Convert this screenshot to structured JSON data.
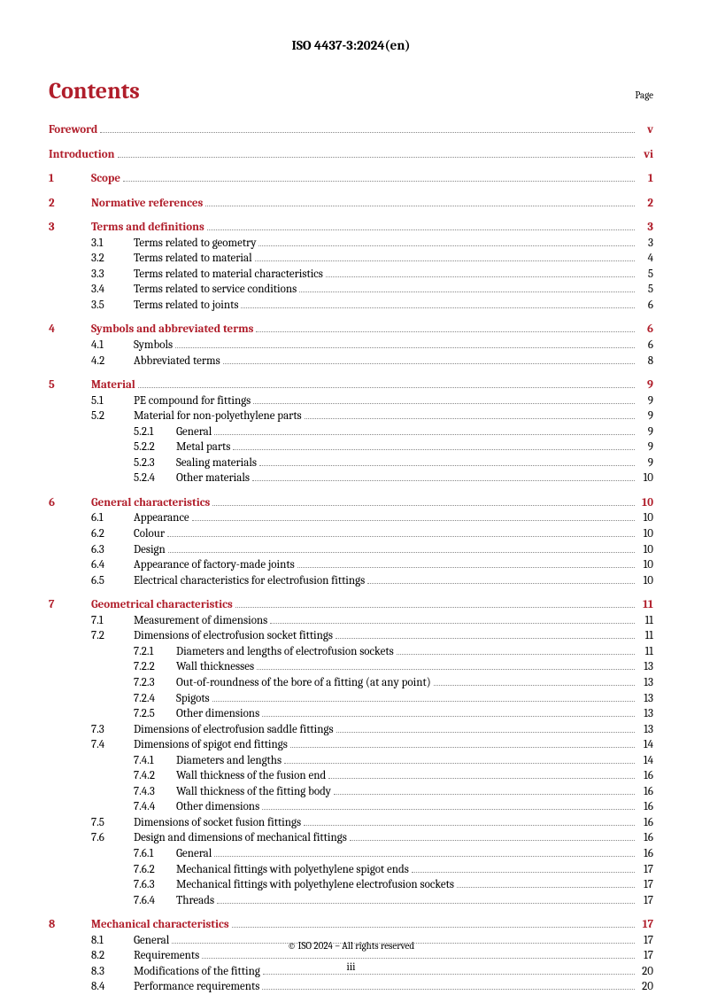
{
  "doc_header": "ISO 4437-3:2024(en)",
  "contents_title": "Contents",
  "page_label": "Page",
  "footer": "© ISO 2024 – All rights reserved",
  "page_number": "iii",
  "toc": [
    {
      "level": 0,
      "bold": true,
      "red": true,
      "num": "",
      "label": "Foreword",
      "page": "v",
      "blockStart": true
    },
    {
      "level": 0,
      "bold": true,
      "red": true,
      "num": "",
      "label": "Introduction",
      "page": "vi",
      "blockStart": true
    },
    {
      "level": 1,
      "bold": true,
      "red": true,
      "num": "1",
      "label": "Scope",
      "page": "1",
      "blockStart": true
    },
    {
      "level": 1,
      "bold": true,
      "red": true,
      "num": "2",
      "label": "Normative references",
      "page": "2",
      "blockStart": true
    },
    {
      "level": 1,
      "bold": true,
      "red": true,
      "num": "3",
      "label": "Terms and definitions",
      "page": "3",
      "blockStart": true
    },
    {
      "level": 2,
      "num": "3.1",
      "label": "Terms related to geometry",
      "page": "3"
    },
    {
      "level": 2,
      "num": "3.2",
      "label": "Terms related to material",
      "page": "4"
    },
    {
      "level": 2,
      "num": "3.3",
      "label": "Terms related to material characteristics",
      "page": "5"
    },
    {
      "level": 2,
      "num": "3.4",
      "label": "Terms related to service conditions",
      "page": "5"
    },
    {
      "level": 2,
      "num": "3.5",
      "label": "Terms related to joints",
      "page": "6"
    },
    {
      "level": 1,
      "bold": true,
      "red": true,
      "num": "4",
      "label": "Symbols and abbreviated terms",
      "page": "6",
      "blockStart": true
    },
    {
      "level": 2,
      "num": "4.1",
      "label": "Symbols",
      "page": "6"
    },
    {
      "level": 2,
      "num": "4.2",
      "label": "Abbreviated terms",
      "page": "8"
    },
    {
      "level": 1,
      "bold": true,
      "red": true,
      "num": "5",
      "label": "Material",
      "page": "9",
      "blockStart": true
    },
    {
      "level": 2,
      "num": "5.1",
      "label": "PE compound for fittings",
      "page": "9"
    },
    {
      "level": 2,
      "num": "5.2",
      "label": "Material for non-polyethylene parts",
      "page": "9"
    },
    {
      "level": 3,
      "num": "5.2.1",
      "label": "General",
      "page": "9"
    },
    {
      "level": 3,
      "num": "5.2.2",
      "label": "Metal parts",
      "page": "9"
    },
    {
      "level": 3,
      "num": "5.2.3",
      "label": "Sealing materials",
      "page": "9"
    },
    {
      "level": 3,
      "num": "5.2.4",
      "label": "Other materials",
      "page": "10"
    },
    {
      "level": 1,
      "bold": true,
      "red": true,
      "num": "6",
      "label": "General characteristics",
      "page": "10",
      "blockStart": true
    },
    {
      "level": 2,
      "num": "6.1",
      "label": "Appearance",
      "page": "10"
    },
    {
      "level": 2,
      "num": "6.2",
      "label": "Colour",
      "page": "10"
    },
    {
      "level": 2,
      "num": "6.3",
      "label": "Design",
      "page": "10"
    },
    {
      "level": 2,
      "num": "6.4",
      "label": "Appearance of factory-made joints",
      "page": "10"
    },
    {
      "level": 2,
      "num": "6.5",
      "label": "Electrical characteristics for electrofusion fittings",
      "page": "10"
    },
    {
      "level": 1,
      "bold": true,
      "red": true,
      "num": "7",
      "label": "Geometrical characteristics",
      "page": "11",
      "blockStart": true
    },
    {
      "level": 2,
      "num": "7.1",
      "label": "Measurement of dimensions",
      "page": "11"
    },
    {
      "level": 2,
      "num": "7.2",
      "label": "Dimensions of electrofusion socket fittings",
      "page": "11"
    },
    {
      "level": 3,
      "num": "7.2.1",
      "label": "Diameters and lengths of electrofusion sockets",
      "page": "11"
    },
    {
      "level": 3,
      "num": "7.2.2",
      "label": "Wall thicknesses",
      "page": "13"
    },
    {
      "level": 3,
      "num": "7.2.3",
      "label": "Out-of-roundness of the bore of a fitting (at any point)",
      "page": "13"
    },
    {
      "level": 3,
      "num": "7.2.4",
      "label": "Spigots",
      "page": "13"
    },
    {
      "level": 3,
      "num": "7.2.5",
      "label": "Other dimensions",
      "page": "13"
    },
    {
      "level": 2,
      "num": "7.3",
      "label": "Dimensions of electrofusion saddle fittings",
      "page": "13"
    },
    {
      "level": 2,
      "num": "7.4",
      "label": "Dimensions of spigot end fittings",
      "page": "14"
    },
    {
      "level": 3,
      "num": "7.4.1",
      "label": "Diameters and lengths",
      "page": "14"
    },
    {
      "level": 3,
      "num": "7.4.2",
      "label": "Wall thickness of the fusion end",
      "page": "16"
    },
    {
      "level": 3,
      "num": "7.4.3",
      "label": "Wall thickness of the fitting body",
      "page": "16"
    },
    {
      "level": 3,
      "num": "7.4.4",
      "label": "Other dimensions",
      "page": "16"
    },
    {
      "level": 2,
      "num": "7.5",
      "label": "Dimensions of socket fusion fittings",
      "page": "16"
    },
    {
      "level": 2,
      "num": "7.6",
      "label": "Design and dimensions of mechanical fittings",
      "page": "16"
    },
    {
      "level": 3,
      "num": "7.6.1",
      "label": "General",
      "page": "16"
    },
    {
      "level": 3,
      "num": "7.6.2",
      "label": "Mechanical fittings with polyethylene spigot ends",
      "page": "17"
    },
    {
      "level": 3,
      "num": "7.6.3",
      "label": "Mechanical fittings with polyethylene electrofusion sockets",
      "page": "17"
    },
    {
      "level": 3,
      "num": "7.6.4",
      "label": "Threads",
      "page": "17"
    },
    {
      "level": 1,
      "bold": true,
      "red": true,
      "num": "8",
      "label": "Mechanical characteristics",
      "page": "17",
      "blockStart": true
    },
    {
      "level": 2,
      "num": "8.1",
      "label": "General",
      "page": "17"
    },
    {
      "level": 2,
      "num": "8.2",
      "label": "Requirements",
      "page": "17"
    },
    {
      "level": 2,
      "num": "8.3",
      "label": "Modifications of the fitting",
      "page": "20"
    },
    {
      "level": 2,
      "num": "8.4",
      "label": "Performance requirements",
      "page": "20"
    }
  ]
}
